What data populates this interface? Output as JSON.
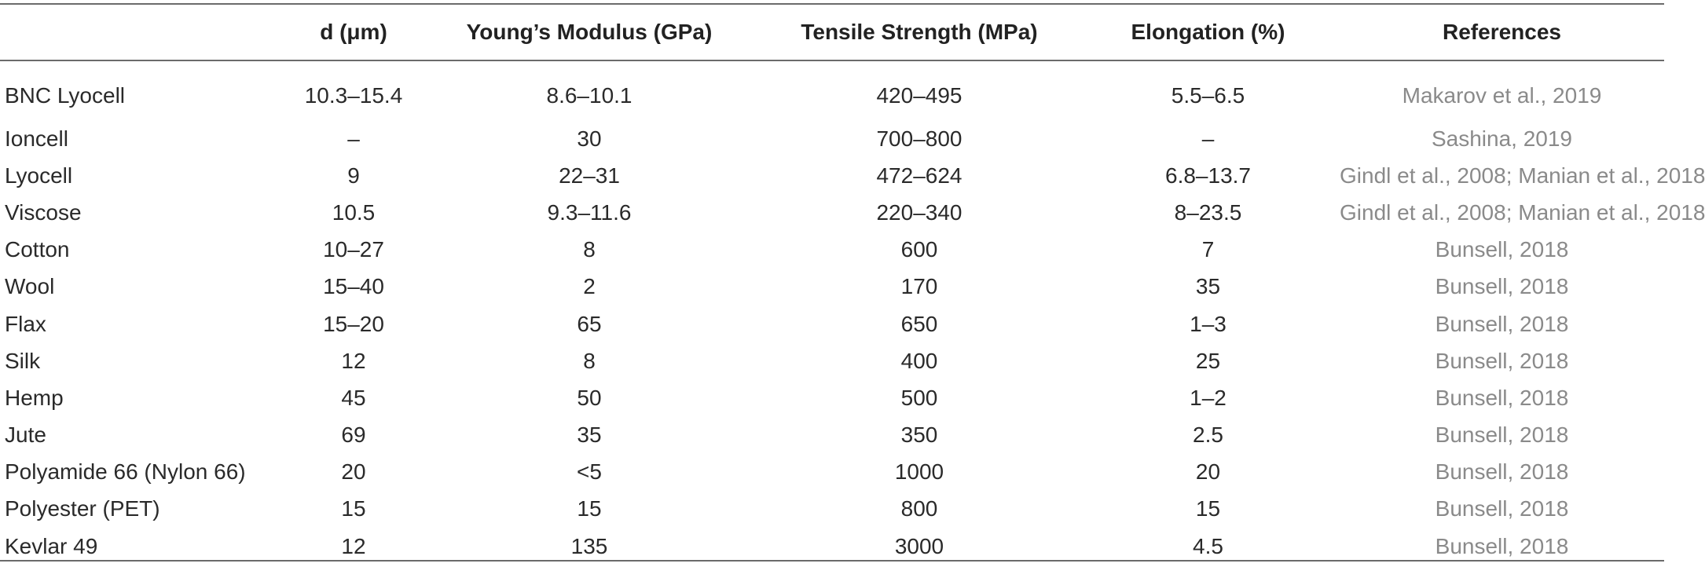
{
  "table": {
    "headers": [
      "",
      "d (μm)",
      "Young’s Modulus (GPa)",
      "Tensile Strength (MPa)",
      "Elongation (%)",
      "References"
    ],
    "rows": [
      [
        "BNC Lyocell",
        "10.3–15.4",
        "8.6–10.1",
        "420–495",
        "5.5–6.5",
        "Makarov et al., 2019"
      ],
      [
        "Ioncell",
        "–",
        "30",
        "700–800",
        "–",
        "Sashina, 2019"
      ],
      [
        "Lyocell",
        "9",
        "22–31",
        "472–624",
        "6.8–13.7",
        "Gindl et al., 2008; Manian et al., 2018"
      ],
      [
        "Viscose",
        "10.5",
        "9.3–11.6",
        "220–340",
        "8–23.5",
        "Gindl et al., 2008; Manian et al., 2018"
      ],
      [
        "Cotton",
        "10–27",
        "8",
        "600",
        "7",
        "Bunsell, 2018"
      ],
      [
        "Wool",
        "15–40",
        "2",
        "170",
        "35",
        "Bunsell, 2018"
      ],
      [
        "Flax",
        "15–20",
        "65",
        "650",
        "1–3",
        "Bunsell, 2018"
      ],
      [
        "Silk",
        "12",
        "8",
        "400",
        "25",
        "Bunsell, 2018"
      ],
      [
        "Hemp",
        "45",
        "50",
        "500",
        "1–2",
        "Bunsell, 2018"
      ],
      [
        "Jute",
        "69",
        "35",
        "350",
        "2.5",
        "Bunsell, 2018"
      ],
      [
        "Polyamide 66 (Nylon 66)",
        "20",
        "<5",
        "1000",
        "20",
        "Bunsell, 2018"
      ],
      [
        "Polyester (PET)",
        "15",
        "15",
        "800",
        "15",
        "Bunsell, 2018"
      ],
      [
        "Kevlar 49",
        "12",
        "135",
        "3000",
        "4.5",
        "Bunsell, 2018"
      ]
    ]
  },
  "colors": {
    "text": "#222222",
    "reference_text": "#8a8a8a",
    "rule": "#6b6b6b"
  }
}
